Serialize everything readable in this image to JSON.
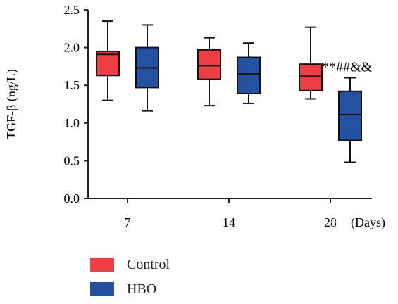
{
  "chart_data": {
    "type": "boxplot",
    "ylabel": "TGF-β (ng/L)",
    "xunit": "(Days)",
    "ylim": [
      0,
      2.5
    ],
    "yticks": [
      "0.0",
      "0.5",
      "1.0",
      "1.5",
      "2.0",
      "2.5"
    ],
    "categories": [
      "7",
      "14",
      "28"
    ],
    "series": [
      {
        "name": "Control",
        "color": "#ef3e42",
        "boxes": [
          {
            "min": 1.3,
            "q1": 1.63,
            "median": 1.91,
            "q3": 1.95,
            "max": 2.35
          },
          {
            "min": 1.23,
            "q1": 1.58,
            "median": 1.76,
            "q3": 1.97,
            "max": 2.13
          },
          {
            "min": 1.32,
            "q1": 1.43,
            "median": 1.62,
            "q3": 1.78,
            "max": 2.27
          }
        ]
      },
      {
        "name": "HBO",
        "color": "#2352a3",
        "boxes": [
          {
            "min": 1.16,
            "q1": 1.47,
            "median": 1.73,
            "q3": 2.0,
            "max": 2.3
          },
          {
            "min": 1.26,
            "q1": 1.39,
            "median": 1.65,
            "q3": 1.87,
            "max": 2.06
          },
          {
            "min": 0.48,
            "q1": 0.77,
            "median": 1.11,
            "q3": 1.42,
            "max": 1.6
          }
        ]
      }
    ],
    "annotations": [
      {
        "text": "**##&&",
        "category": "28",
        "y": 1.72
      }
    ]
  }
}
